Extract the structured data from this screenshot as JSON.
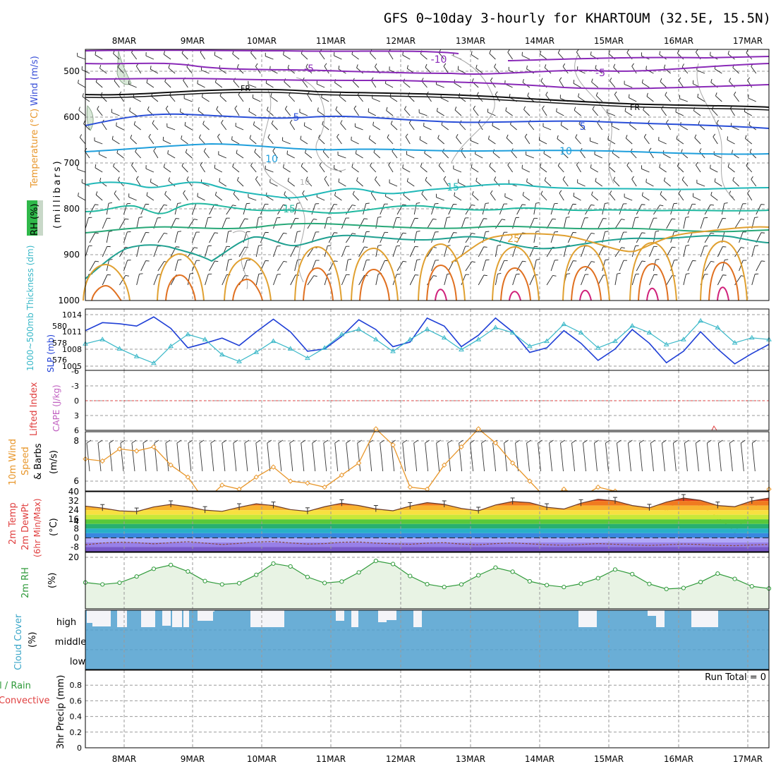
{
  "title": "GFS 0~10day 3-hourly for KHARTOUM (32.5E, 15.5N)",
  "date_labels": [
    "8MAR",
    "9MAR",
    "10MAR",
    "11MAR",
    "12MAR",
    "13MAR",
    "14MAR",
    "15MAR",
    "16MAR",
    "17MAR"
  ],
  "panels": {
    "upper_air": {
      "label_wind": "Wind (m/s)",
      "label_temp": "Temperature (°C)",
      "label_rh": "RH (%)",
      "label_mb": "(millibars)",
      "pressure_ticks": [
        "500",
        "600",
        "700",
        "800",
        "900",
        "1000"
      ],
      "contour_labels": [
        "-10",
        "-5",
        "FR",
        "-5",
        "FR",
        "5",
        "5",
        "10",
        "10",
        "10",
        "15",
        "15",
        "25",
        "-5",
        "-10"
      ]
    },
    "thickness_slp": {
      "label_thick": "1000~500mb Thickness (dm)",
      "label_slp": "SLP (mb)",
      "left_ticks": [
        "580",
        "578",
        "576"
      ],
      "right_ticks": [
        "1014",
        "1011",
        "1008",
        "1005"
      ]
    },
    "cape_li": {
      "label_li": "Lifted Index",
      "label_cape": "CAPE (J/kg)",
      "ticks": [
        "-6",
        "-3",
        "0",
        "3",
        "6"
      ]
    },
    "wind10m": {
      "label_a": "10m Wind",
      "label_b": "Speed",
      "label_c": "& Barbs",
      "label_unit": "(m/s)",
      "ticks": [
        "8",
        "6",
        "4"
      ]
    },
    "temp2m": {
      "label_a": "2m Temp",
      "label_b": "2m DewPt",
      "label_c": "(6hr Min/Max)",
      "label_unit": "(°C)",
      "ticks": [
        "40",
        "32",
        "24",
        "16",
        "8",
        "0",
        "-8"
      ]
    },
    "rh2m": {
      "label_a": "2m RH",
      "label_unit": "(%)",
      "ticks": [
        "20"
      ]
    },
    "cloud": {
      "label_a": "Cloud Cover",
      "label_unit": "(%)",
      "levels": [
        "high",
        "middle",
        "low"
      ]
    },
    "precip": {
      "label_a": "tal / Rain",
      "label_b": "Convective",
      "label_c": "3hr Precip (mm)",
      "run_total": "Run Total = 0",
      "ticks": [
        "0.8",
        "0.6",
        "0.4",
        "0.2",
        "0"
      ]
    }
  },
  "colors": {
    "slp": "#1f3fd6",
    "thickness": "#3ab8c8",
    "wind_speed": "#e8962a",
    "rh": "#2f9a3a",
    "rh_fill": "#e8f3e4",
    "cloud": "#6aaed6",
    "cape": "#c060c0",
    "li": "#e03c3c"
  },
  "chart_data": [
    {
      "type": "line",
      "name": "1000~500mb thickness and SLP",
      "time_steps": 41,
      "series": [
        {
          "name": "SLP (mb)",
          "values": [
            1011.2,
            1012.6,
            1012.4,
            1012.0,
            1013.6,
            1011.6,
            1008.2,
            1009.0,
            1009.9,
            1008.6,
            1011.0,
            1013.2,
            1011.0,
            1007.6,
            1008.0,
            1010.2,
            1013.1,
            1011.4,
            1008.4,
            1009.2,
            1013.4,
            1012.0,
            1008.4,
            1010.4,
            1013.4,
            1011.0,
            1007.4,
            1008.2,
            1011.2,
            1009.0,
            1006.0,
            1008.0,
            1011.4,
            1009.0,
            1005.6,
            1007.6,
            1011.0,
            1008.0,
            1005.4,
            1007.2,
            1008.8
          ]
        },
        {
          "name": "1000~500mb Thickness (dm)",
          "values": [
            577.9,
            578.4,
            577.3,
            576.4,
            575.6,
            577.6,
            579.0,
            578.4,
            576.6,
            575.8,
            576.9,
            578.2,
            577.3,
            576.2,
            577.4,
            579.0,
            579.6,
            578.4,
            577.0,
            578.4,
            579.6,
            578.6,
            577.2,
            578.4,
            579.8,
            579.2,
            577.6,
            578.2,
            580.2,
            579.2,
            577.4,
            578.2,
            580.0,
            579.2,
            577.8,
            578.4,
            580.6,
            579.8,
            578.0,
            578.6,
            578.4
          ]
        }
      ]
    },
    {
      "type": "line",
      "name": "CAPE and Lifted Index",
      "ylim": [
        -6,
        6
      ],
      "series": [
        {
          "name": "Lifted Index",
          "values": []
        },
        {
          "name": "CAPE (J/kg)",
          "values": []
        }
      ]
    },
    {
      "type": "line",
      "name": "10m wind speed",
      "ylim": [
        3,
        9
      ],
      "series": [
        {
          "name": "10m Wind Speed (m/s)",
          "values": [
            7.1,
            7.0,
            7.6,
            7.5,
            7.7,
            6.8,
            6.2,
            5.0,
            5.8,
            5.6,
            6.2,
            6.7,
            6.0,
            5.9,
            5.7,
            6.3,
            6.9,
            8.6,
            7.8,
            5.7,
            5.6,
            6.8,
            7.7,
            8.6,
            7.9,
            6.9,
            6.0,
            5.1,
            5.6,
            5.2,
            5.7,
            5.5,
            5.0,
            4.9,
            4.6,
            5.1,
            4.8,
            4.2,
            3.5,
            4.5,
            5.6
          ]
        }
      ]
    },
    {
      "type": "area",
      "name": "2m temperature and dew point",
      "ylim": [
        -12,
        40
      ],
      "series": [
        {
          "name": "2m Temp (°C)",
          "values": [
            27.5,
            25.8,
            23.4,
            22.8,
            26.8,
            29.0,
            27.0,
            24.0,
            23.0,
            26.5,
            29.5,
            28.0,
            24.5,
            23.0,
            27.0,
            30.0,
            28.0,
            25.0,
            23.5,
            27.5,
            30.5,
            29.0,
            25.5,
            23.5,
            28.5,
            31.5,
            30.5,
            26.5,
            25.0,
            30.0,
            33.5,
            32.0,
            28.0,
            26.0,
            31.0,
            34.5,
            32.5,
            28.0,
            27.0,
            32.0,
            34.5
          ]
        },
        {
          "name": "2m DewPt (°C)",
          "values": [
            -6.0,
            -4.5,
            -3.8,
            -4.2,
            -5.2,
            -4.2,
            -3.4,
            -4.6,
            -5.8,
            -4.8,
            -3.6,
            -3.2,
            -4.4,
            -5.4,
            -5.0,
            -3.8,
            -3.6,
            -4.6,
            -5.2,
            -5.6,
            -4.6,
            -4.2,
            -5.4,
            -6.0,
            -5.0,
            -4.4,
            -5.2,
            -6.0,
            -6.4,
            -5.8,
            -5.0,
            -5.6,
            -6.2,
            -6.6,
            -6.0,
            -5.4,
            -5.8,
            -6.6,
            -6.8,
            -6.2,
            -5.8
          ]
        }
      ]
    },
    {
      "type": "area",
      "name": "2m relative humidity",
      "series": [
        {
          "name": "2m RH (%)",
          "values": [
            9.5,
            8.7,
            9.4,
            12.0,
            15.2,
            16.8,
            14.1,
            10.1,
            8.7,
            9.2,
            12.7,
            17.4,
            16.2,
            11.8,
            9.3,
            9.9,
            13.7,
            18.5,
            17.2,
            12.2,
            8.8,
            7.6,
            8.7,
            12.5,
            15.7,
            14.0,
            10.0,
            8.4,
            7.6,
            9.0,
            11.3,
            14.9,
            13.0,
            8.9,
            6.8,
            7.2,
            9.7,
            13.2,
            11.0,
            7.9,
            7.0
          ]
        }
      ]
    },
    {
      "type": "bar",
      "name": "3hr precip",
      "ylim": [
        0,
        1
      ],
      "series": [
        {
          "name": "3hr Precip (mm)",
          "values": []
        }
      ]
    }
  ]
}
